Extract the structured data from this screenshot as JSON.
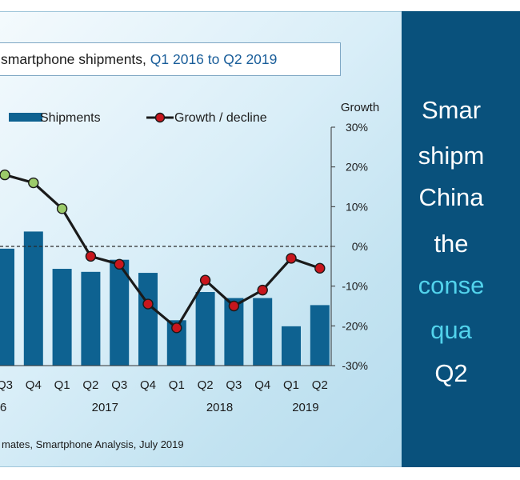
{
  "title": {
    "prefix": "smartphone shipments,",
    "highlight": "Q1 2016 to Q2 2019"
  },
  "source": "mates, Smartphone Analysis, July 2019",
  "colors": {
    "bar": "#0e6291",
    "line": "#1a1a1a",
    "marker_green": "#9ccb6a",
    "marker_red": "#c8161d",
    "panel_dark": "#09517c",
    "highlight_text": "#52d3ec"
  },
  "chart_data": {
    "type": "bar",
    "legend": {
      "bar_label": "Shipments",
      "line_label": "Growth / decline",
      "position": "top"
    },
    "categories": [
      "Q3",
      "Q4",
      "Q1",
      "Q2",
      "Q3",
      "Q4",
      "Q1",
      "Q2",
      "Q3",
      "Q4",
      "Q1",
      "Q2"
    ],
    "year_labels": [
      {
        "label": "6",
        "after_category": 0
      },
      {
        "label": "2017",
        "after_category": 3
      },
      {
        "label": "2018",
        "after_category": 7
      },
      {
        "label": "2019",
        "after_category": 10
      }
    ],
    "series": [
      {
        "name": "Shipments",
        "type": "bar",
        "values": [
          116,
          133,
          96,
          93,
          105,
          92,
          45,
          73,
          67,
          67,
          39,
          60
        ]
      },
      {
        "name": "Growth / decline",
        "type": "line",
        "axis": "right",
        "values": [
          18,
          16,
          9.5,
          -2.5,
          -4.5,
          -14.5,
          -20.5,
          -8.5,
          -15,
          -11,
          -3,
          -5.5
        ],
        "marker_colors": [
          "green",
          "green",
          "green",
          "red",
          "red",
          "red",
          "red",
          "red",
          "red",
          "red",
          "red",
          "red"
        ]
      }
    ],
    "y2label": "Growth",
    "y2lim": [
      -30,
      30
    ],
    "y2ticks": [
      "30%",
      "20%",
      "10%",
      "0%",
      "-10%",
      "-20%",
      "-30%"
    ],
    "zero_line": "dashed",
    "grid": false
  },
  "side_text": [
    {
      "text": "Smar",
      "color": "white"
    },
    {
      "text": "shipm",
      "color": "white"
    },
    {
      "text": "China",
      "color": "white"
    },
    {
      "text": "the",
      "color": "white"
    },
    {
      "text": "conse",
      "color": "cyan"
    },
    {
      "text": "qua",
      "color": "cyan"
    },
    {
      "text": "Q2",
      "color": "white"
    }
  ]
}
